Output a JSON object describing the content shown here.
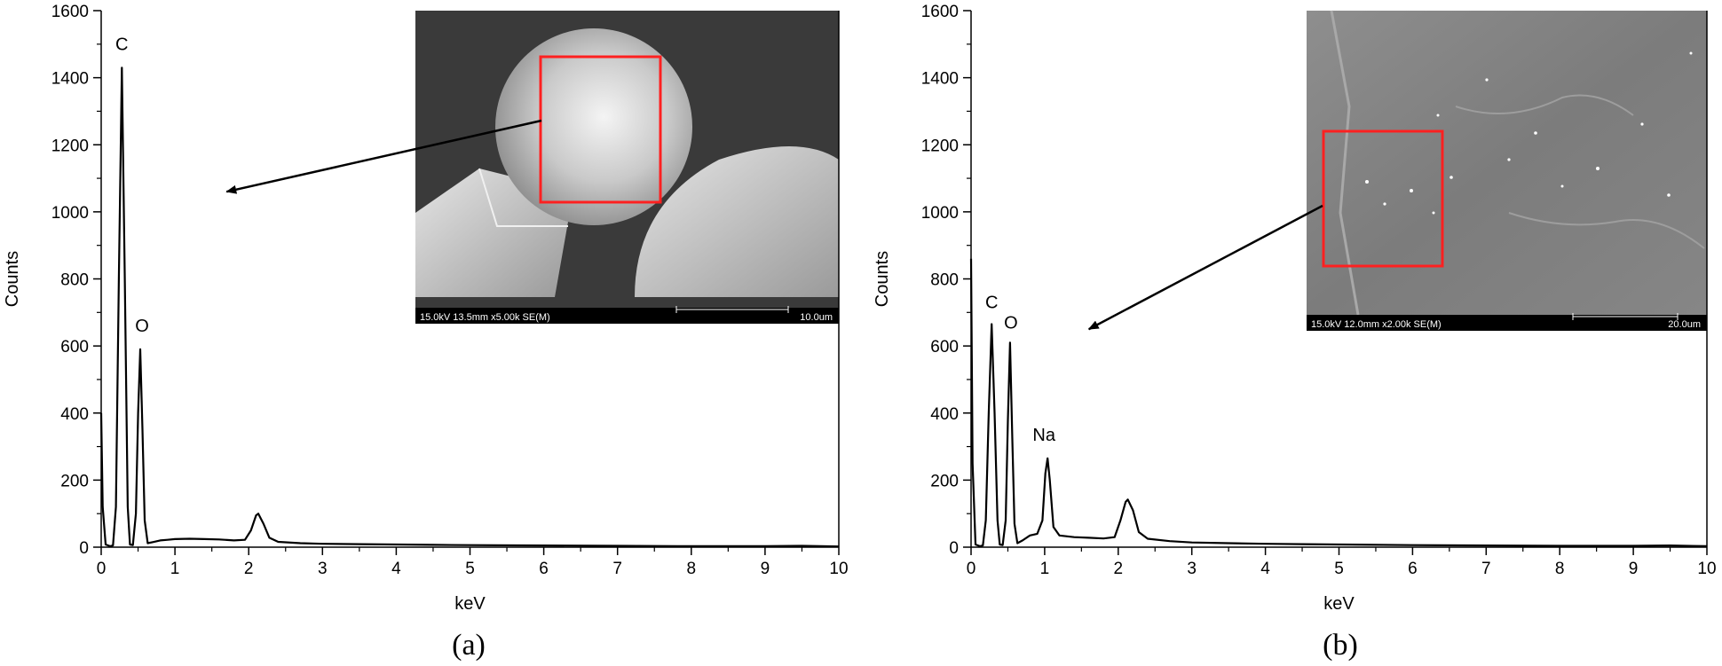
{
  "chart_data": [
    {
      "type": "line",
      "panel": "a",
      "caption": "(a)",
      "xlabel": "keV",
      "ylabel": "Counts",
      "xlim": [
        0,
        10
      ],
      "ylim": [
        0,
        1600
      ],
      "x_ticks": [
        "0",
        "1",
        "2",
        "3",
        "4",
        "5",
        "6",
        "7",
        "8",
        "9",
        "10"
      ],
      "y_ticks": [
        "0",
        "200",
        "400",
        "600",
        "800",
        "1000",
        "1200",
        "1400",
        "1600"
      ],
      "grid": false,
      "peaks": [
        {
          "label": "C",
          "x": 0.28,
          "y": 1430
        },
        {
          "label": "O",
          "x": 0.53,
          "y": 590
        },
        {
          "label": "",
          "x": 2.13,
          "y": 100
        }
      ],
      "series": [
        {
          "values": [
            [
              0.0,
              400
            ],
            [
              0.02,
              120
            ],
            [
              0.06,
              8
            ],
            [
              0.12,
              3
            ],
            [
              0.16,
              5
            ],
            [
              0.2,
              120
            ],
            [
              0.24,
              800
            ],
            [
              0.28,
              1430
            ],
            [
              0.32,
              800
            ],
            [
              0.36,
              120
            ],
            [
              0.39,
              8
            ],
            [
              0.43,
              6
            ],
            [
              0.47,
              100
            ],
            [
              0.5,
              400
            ],
            [
              0.53,
              590
            ],
            [
              0.56,
              350
            ],
            [
              0.59,
              80
            ],
            [
              0.63,
              12
            ],
            [
              0.7,
              15
            ],
            [
              0.8,
              20
            ],
            [
              0.9,
              22
            ],
            [
              1.0,
              24
            ],
            [
              1.2,
              25
            ],
            [
              1.4,
              24
            ],
            [
              1.6,
              23
            ],
            [
              1.8,
              20
            ],
            [
              1.95,
              22
            ],
            [
              2.03,
              50
            ],
            [
              2.1,
              95
            ],
            [
              2.13,
              100
            ],
            [
              2.2,
              70
            ],
            [
              2.28,
              28
            ],
            [
              2.4,
              16
            ],
            [
              2.7,
              12
            ],
            [
              3.0,
              10
            ],
            [
              3.5,
              9
            ],
            [
              4.0,
              8
            ],
            [
              4.5,
              7
            ],
            [
              5.0,
              6
            ],
            [
              6.0,
              5
            ],
            [
              7.0,
              4
            ],
            [
              8.0,
              3
            ],
            [
              9.0,
              3
            ],
            [
              9.5,
              4
            ],
            [
              10.0,
              2
            ]
          ]
        }
      ],
      "inset": {
        "info_text": "15.0kV 13.5mm x5.00k SE(M)",
        "scale_text": "10.0um",
        "arrow_tip": [
          1.7,
          1060
        ]
      }
    },
    {
      "type": "line",
      "panel": "b",
      "caption": "(b)",
      "xlabel": "keV",
      "ylabel": "Counts",
      "xlim": [
        0,
        10
      ],
      "ylim": [
        0,
        1600
      ],
      "x_ticks": [
        "0",
        "1",
        "2",
        "3",
        "4",
        "5",
        "6",
        "7",
        "8",
        "9",
        "10"
      ],
      "y_ticks": [
        "0",
        "200",
        "400",
        "600",
        "800",
        "1000",
        "1200",
        "1400",
        "1600"
      ],
      "grid": false,
      "peaks": [
        {
          "label": "C",
          "x": 0.28,
          "y": 665
        },
        {
          "label": "O",
          "x": 0.53,
          "y": 610
        },
        {
          "label": "Na",
          "x": 1.04,
          "y": 265
        },
        {
          "label": "",
          "x": 2.13,
          "y": 142
        }
      ],
      "series": [
        {
          "values": [
            [
              0.0,
              860
            ],
            [
              0.02,
              250
            ],
            [
              0.06,
              8
            ],
            [
              0.12,
              3
            ],
            [
              0.16,
              5
            ],
            [
              0.2,
              80
            ],
            [
              0.24,
              400
            ],
            [
              0.28,
              665
            ],
            [
              0.32,
              400
            ],
            [
              0.36,
              80
            ],
            [
              0.39,
              8
            ],
            [
              0.43,
              6
            ],
            [
              0.47,
              80
            ],
            [
              0.5,
              380
            ],
            [
              0.53,
              610
            ],
            [
              0.56,
              330
            ],
            [
              0.59,
              70
            ],
            [
              0.63,
              12
            ],
            [
              0.7,
              20
            ],
            [
              0.8,
              35
            ],
            [
              0.9,
              40
            ],
            [
              0.97,
              80
            ],
            [
              1.01,
              220
            ],
            [
              1.04,
              265
            ],
            [
              1.07,
              200
            ],
            [
              1.12,
              60
            ],
            [
              1.2,
              35
            ],
            [
              1.4,
              30
            ],
            [
              1.6,
              28
            ],
            [
              1.8,
              26
            ],
            [
              1.95,
              30
            ],
            [
              2.03,
              80
            ],
            [
              2.1,
              135
            ],
            [
              2.13,
              142
            ],
            [
              2.2,
              110
            ],
            [
              2.28,
              45
            ],
            [
              2.4,
              25
            ],
            [
              2.7,
              18
            ],
            [
              3.0,
              14
            ],
            [
              3.5,
              12
            ],
            [
              4.0,
              10
            ],
            [
              4.5,
              9
            ],
            [
              5.0,
              8
            ],
            [
              6.0,
              6
            ],
            [
              7.0,
              5
            ],
            [
              8.0,
              4
            ],
            [
              9.0,
              4
            ],
            [
              9.5,
              5
            ],
            [
              10.0,
              3
            ]
          ]
        }
      ],
      "inset": {
        "info_text": "15.0kV 12.0mm x2.00k SE(M)",
        "scale_text": "20.0um",
        "arrow_tip": [
          1.6,
          650
        ]
      }
    }
  ]
}
